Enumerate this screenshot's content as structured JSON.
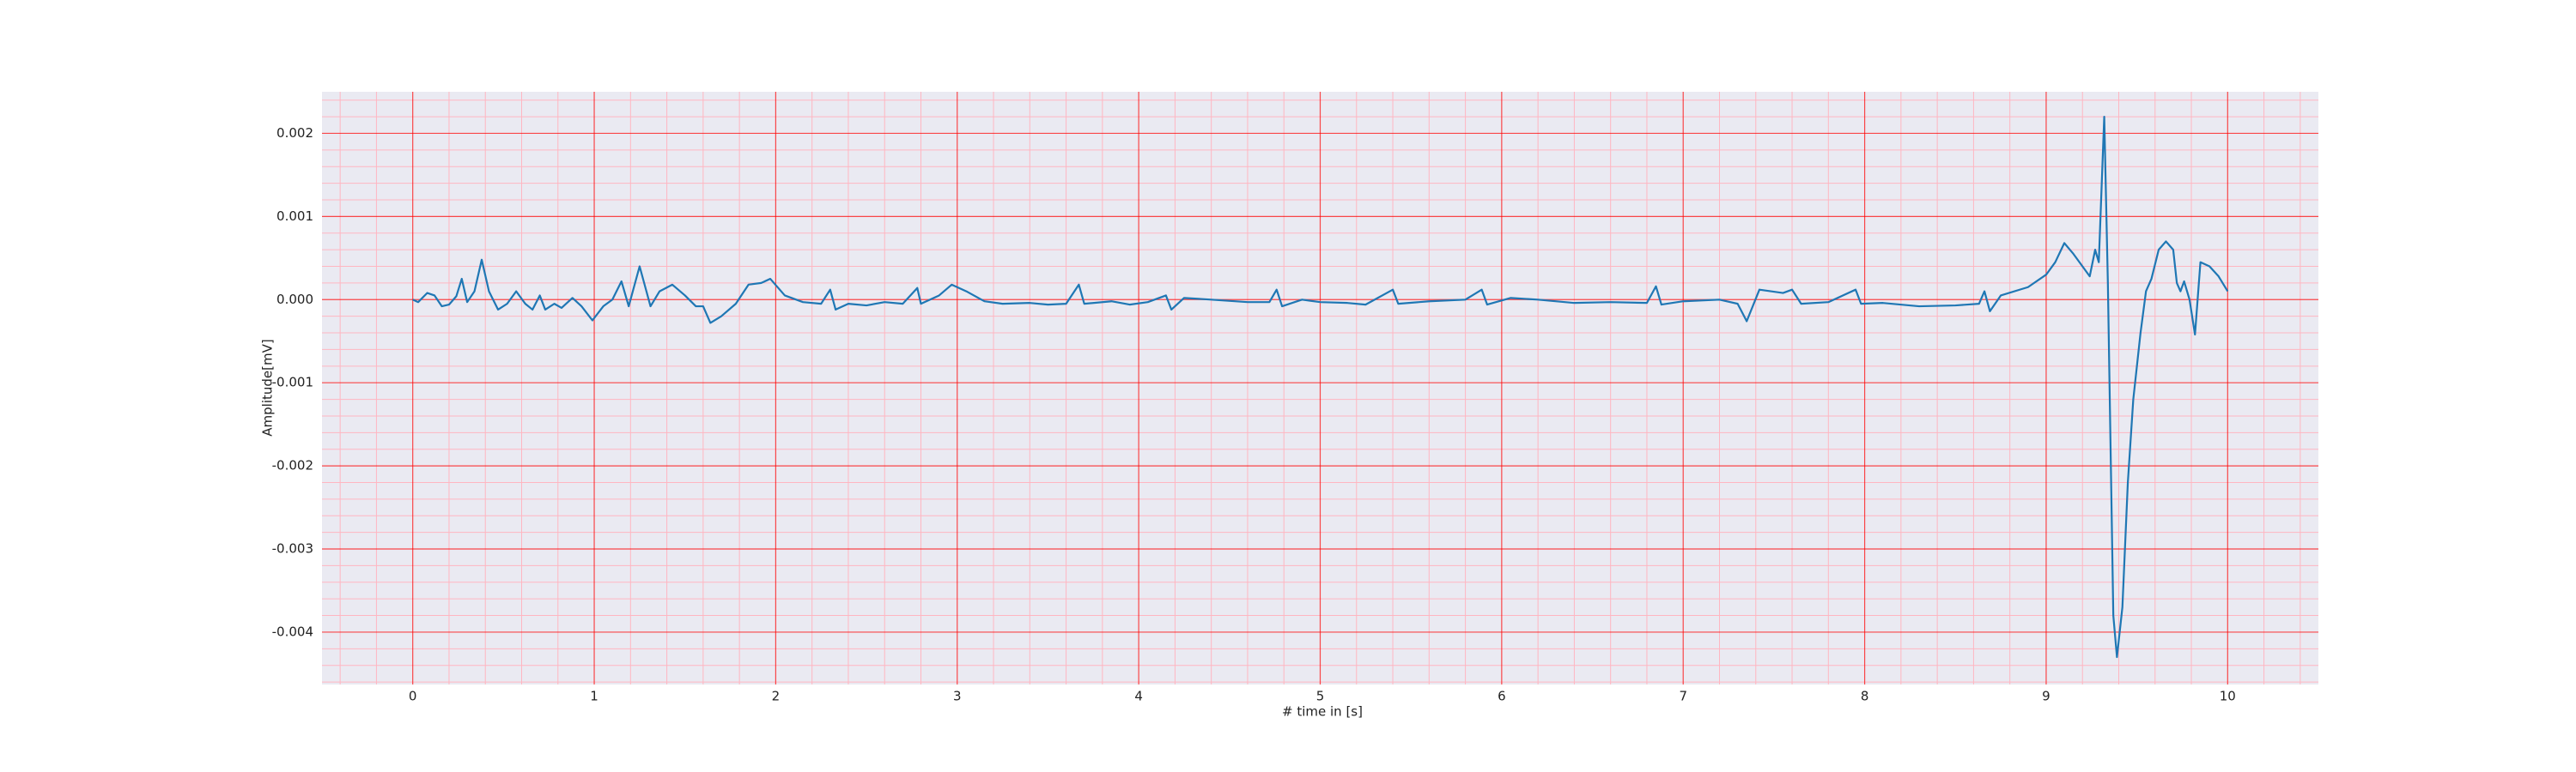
{
  "chart_data": {
    "type": "line",
    "xlabel": "# time in [s]",
    "ylabel": "Amplitude[mV]",
    "x": [
      0.0,
      0.03,
      0.08,
      0.12,
      0.16,
      0.2,
      0.24,
      0.27,
      0.3,
      0.34,
      0.38,
      0.42,
      0.47,
      0.52,
      0.57,
      0.62,
      0.66,
      0.7,
      0.73,
      0.78,
      0.82,
      0.88,
      0.93,
      0.99,
      1.05,
      1.1,
      1.15,
      1.19,
      1.25,
      1.31,
      1.36,
      1.43,
      1.5,
      1.56,
      1.6,
      1.64,
      1.7,
      1.78,
      1.85,
      1.92,
      1.97,
      2.05,
      2.15,
      2.25,
      2.3,
      2.33,
      2.4,
      2.5,
      2.6,
      2.7,
      2.78,
      2.8,
      2.9,
      2.97,
      3.05,
      3.15,
      3.25,
      3.4,
      3.5,
      3.6,
      3.67,
      3.7,
      3.85,
      3.95,
      4.05,
      4.15,
      4.18,
      4.25,
      4.4,
      4.6,
      4.72,
      4.76,
      4.79,
      4.9,
      5.0,
      5.15,
      5.25,
      5.4,
      5.43,
      5.6,
      5.8,
      5.89,
      5.92,
      6.05,
      6.2,
      6.4,
      6.6,
      6.8,
      6.85,
      6.88,
      7.0,
      7.2,
      7.3,
      7.35,
      7.42,
      7.55,
      7.6,
      7.65,
      7.8,
      7.95,
      7.98,
      8.1,
      8.3,
      8.5,
      8.63,
      8.66,
      8.69,
      8.75,
      8.9,
      9.0,
      9.05,
      9.1,
      9.15,
      9.2,
      9.24,
      9.27,
      9.29,
      9.32,
      9.34,
      9.37,
      9.39,
      9.42,
      9.45,
      9.48,
      9.52,
      9.55,
      9.58,
      9.62,
      9.66,
      9.7,
      9.72,
      9.74,
      9.76,
      9.79,
      9.82,
      9.85,
      9.9,
      9.95,
      10.0
    ],
    "values": [
      0.0,
      -3e-05,
      8e-05,
      5e-05,
      -8e-05,
      -6e-05,
      4e-05,
      0.00025,
      -3e-05,
      0.0001,
      0.00048,
      0.0001,
      -0.00012,
      -5e-05,
      0.0001,
      -5e-05,
      -0.00012,
      5e-05,
      -0.00012,
      -5e-05,
      -0.0001,
      2e-05,
      -8e-05,
      -0.00025,
      -8e-05,
      0.0,
      0.00022,
      -8e-05,
      0.0004,
      -8e-05,
      0.0001,
      0.00018,
      5e-05,
      -8e-05,
      -8e-05,
      -0.00028,
      -0.0002,
      -5e-05,
      0.00018,
      0.0002,
      0.00025,
      5e-05,
      -3e-05,
      -5e-05,
      0.00012,
      -0.00012,
      -5e-05,
      -7e-05,
      -3e-05,
      -5e-05,
      0.00014,
      -5e-05,
      5e-05,
      0.00018,
      0.0001,
      -2e-05,
      -5e-05,
      -4e-05,
      -6e-05,
      -5e-05,
      0.00018,
      -5e-05,
      -2e-05,
      -6e-05,
      -3e-05,
      5e-05,
      -0.00012,
      2e-05,
      0.0,
      -3e-05,
      -3e-05,
      0.00012,
      -8e-05,
      0.0,
      -3e-05,
      -4e-05,
      -6e-05,
      0.00012,
      -5e-05,
      -2e-05,
      0.0,
      0.00012,
      -6e-05,
      2e-05,
      0.0,
      -4e-05,
      -3e-05,
      -4e-05,
      0.00016,
      -6e-05,
      -2e-05,
      0.0,
      -5e-05,
      -0.00026,
      0.00012,
      8e-05,
      0.00012,
      -5e-05,
      -3e-05,
      0.00012,
      -5e-05,
      -4e-05,
      -8e-05,
      -7e-05,
      -5e-05,
      0.0001,
      -0.00014,
      5e-05,
      0.00015,
      0.0003,
      0.00045,
      0.00068,
      0.00055,
      0.0004,
      0.00028,
      0.0006,
      0.00045,
      0.0022,
      0.0002,
      -0.0038,
      -0.0043,
      -0.0037,
      -0.0022,
      -0.0012,
      -0.0004,
      0.0001,
      0.00025,
      0.0006,
      0.0007,
      0.0006,
      0.0002,
      0.0001,
      0.00022,
      0.0,
      -0.00042,
      0.00045,
      0.0004,
      0.00028,
      0.0001
    ],
    "color": "#1f77b4",
    "xlim": [
      -0.5,
      10.5
    ],
    "xticks": [
      0,
      1,
      2,
      3,
      4,
      5,
      6,
      7,
      8,
      9,
      10
    ],
    "ylim": [
      -0.00463,
      0.0025
    ],
    "yticks": [
      -0.004,
      -0.003,
      -0.002,
      -0.001,
      {
        "value": 0,
        "label": "0.000"
      },
      0.001,
      0.002
    ],
    "grid": true,
    "grid_color": "#ff0000",
    "minor_grid": true,
    "minor_grid_color": "#ffb6c1",
    "minor_divisions": 5,
    "background": "#eaeaf2"
  }
}
